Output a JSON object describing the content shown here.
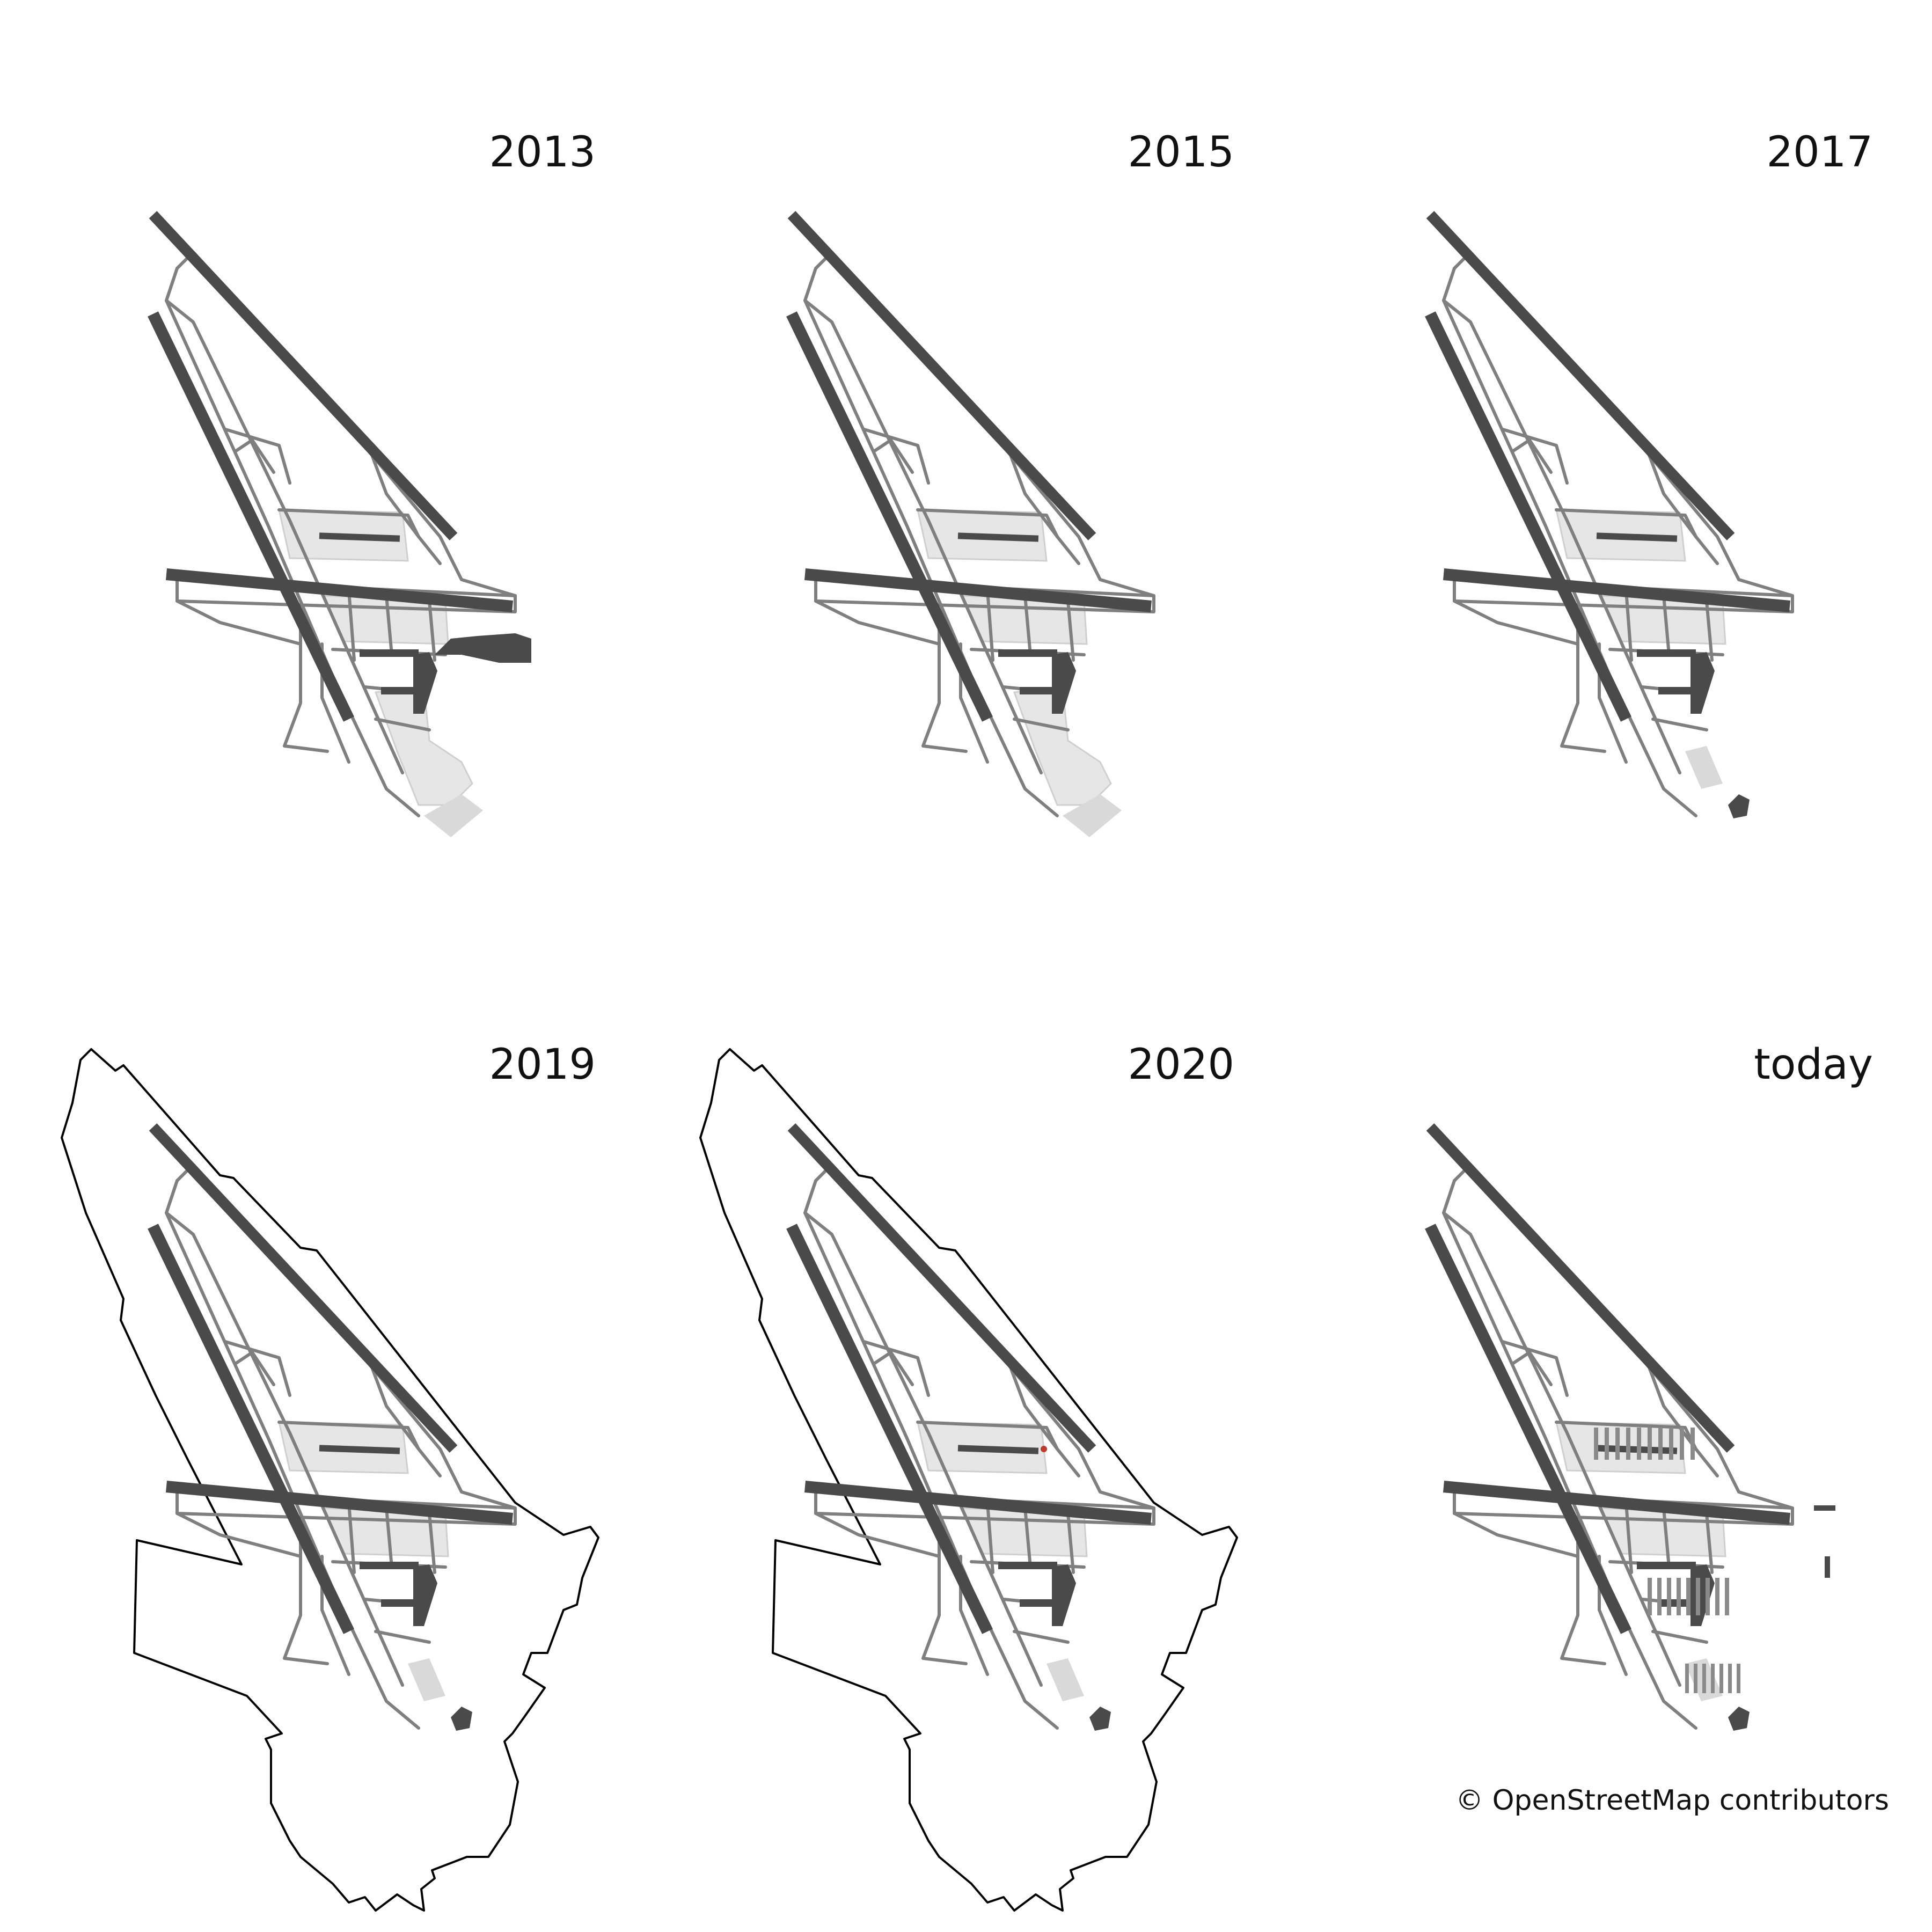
{
  "panels": [
    {
      "id": "p2013",
      "label": "2013",
      "has_boundary": false,
      "variant": "early"
    },
    {
      "id": "p2015",
      "label": "2015",
      "has_boundary": false,
      "variant": "early2"
    },
    {
      "id": "p2017",
      "label": "2017",
      "has_boundary": false,
      "variant": "mid"
    },
    {
      "id": "p2019",
      "label": "2019",
      "has_boundary": true,
      "variant": "mid"
    },
    {
      "id": "p2020",
      "label": "2020",
      "has_boundary": true,
      "variant": "mid2"
    },
    {
      "id": "ptoday",
      "label": "today",
      "has_boundary": false,
      "variant": "today"
    }
  ],
  "attribution": "© OpenStreetMap contributors",
  "colors": {
    "runway": "#4a4a4a",
    "taxiway": "#7f7f7f",
    "apron": "#e6e6e6",
    "building": "#4a4a4a",
    "boundary": "#000000",
    "highlight": "#c0392b"
  }
}
